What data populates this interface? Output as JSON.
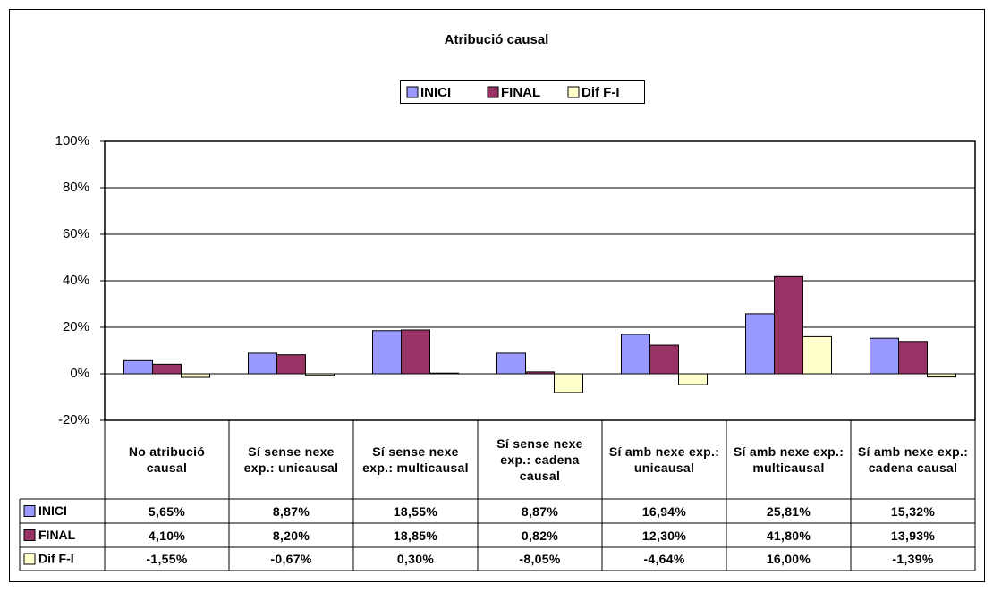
{
  "chart_data": {
    "type": "bar",
    "title": "Atribució causal",
    "categories": [
      "No atribució causal",
      "Sí sense nexe exp.: unicausal",
      "Sí sense nexe exp.: multicausal",
      "Sí sense nexe exp.: cadena causal",
      "Sí amb nexe exp.: unicausal",
      "Sí amb nexe exp.: multicausal",
      "Sí amb nexe exp.: cadena causal"
    ],
    "series": [
      {
        "name": "INICI",
        "color": "#9999ff",
        "values": [
          5.65,
          8.87,
          18.55,
          8.87,
          16.94,
          25.81,
          15.32
        ],
        "value_labels": [
          "5,65%",
          "8,87%",
          "18,55%",
          "8,87%",
          "16,94%",
          "25,81%",
          "15,32%"
        ]
      },
      {
        "name": "FINAL",
        "color": "#993366",
        "values": [
          4.1,
          8.2,
          18.85,
          0.82,
          12.3,
          41.8,
          13.93
        ],
        "value_labels": [
          "4,10%",
          "8,20%",
          "18,85%",
          "0,82%",
          "12,30%",
          "41,80%",
          "13,93%"
        ]
      },
      {
        "name": "Dif F-I",
        "color": "#ffffcc",
        "values": [
          -1.55,
          -0.67,
          0.3,
          -8.05,
          -4.64,
          16.0,
          -1.39
        ],
        "value_labels": [
          "-1,55%",
          "-0,67%",
          "0,30%",
          "-8,05%",
          "-4,64%",
          "16,00%",
          "-1,39%"
        ]
      }
    ],
    "ylim": [
      -20,
      100
    ],
    "yticks": [
      {
        "value": -20,
        "label": "-20%"
      },
      {
        "value": 0,
        "label": "0%"
      },
      {
        "value": 20,
        "label": "20%"
      },
      {
        "value": 40,
        "label": "40%"
      },
      {
        "value": 60,
        "label": "60%"
      },
      {
        "value": 80,
        "label": "80%"
      },
      {
        "value": 100,
        "label": "100%"
      }
    ],
    "grid": true,
    "legend": "top"
  }
}
